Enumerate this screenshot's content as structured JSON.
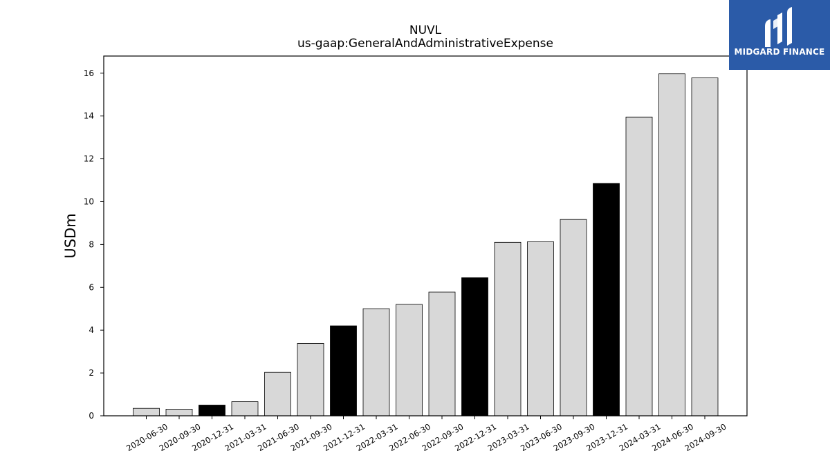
{
  "brand": {
    "name": "MIDGARD FINANCE",
    "background_color": "#2b5ba8",
    "icon": "midgard-logo-icon"
  },
  "chart_data": {
    "type": "bar",
    "title": "NUVL",
    "subtitle": "us-gaap:GeneralAndAdministrativeExpense",
    "xlabel": "",
    "ylabel": "USDm",
    "ylim": [
      0,
      16.8
    ],
    "yticks": [
      0,
      2,
      4,
      6,
      8,
      10,
      12,
      14,
      16
    ],
    "grid": false,
    "legend": "none",
    "colors": {
      "quarter": "#d8d8d8",
      "year_end": "#000000",
      "edge": "#000000"
    },
    "categories": [
      "2020-06-30",
      "2020-09-30",
      "2020-12-31",
      "2021-03-31",
      "2021-06-30",
      "2021-09-30",
      "2021-12-31",
      "2022-03-31",
      "2022-06-30",
      "2022-09-30",
      "2022-12-31",
      "2023-03-31",
      "2023-06-30",
      "2023-09-30",
      "2023-12-31",
      "2024-03-31",
      "2024-06-30",
      "2024-09-30"
    ],
    "values": [
      0.35,
      0.31,
      0.5,
      0.66,
      2.03,
      3.38,
      4.2,
      5.0,
      5.2,
      5.78,
      6.45,
      8.1,
      8.13,
      9.17,
      10.85,
      13.95,
      15.97,
      15.78
    ],
    "highlight": [
      false,
      false,
      true,
      false,
      false,
      false,
      true,
      false,
      false,
      false,
      true,
      false,
      false,
      false,
      true,
      false,
      false,
      false
    ]
  }
}
